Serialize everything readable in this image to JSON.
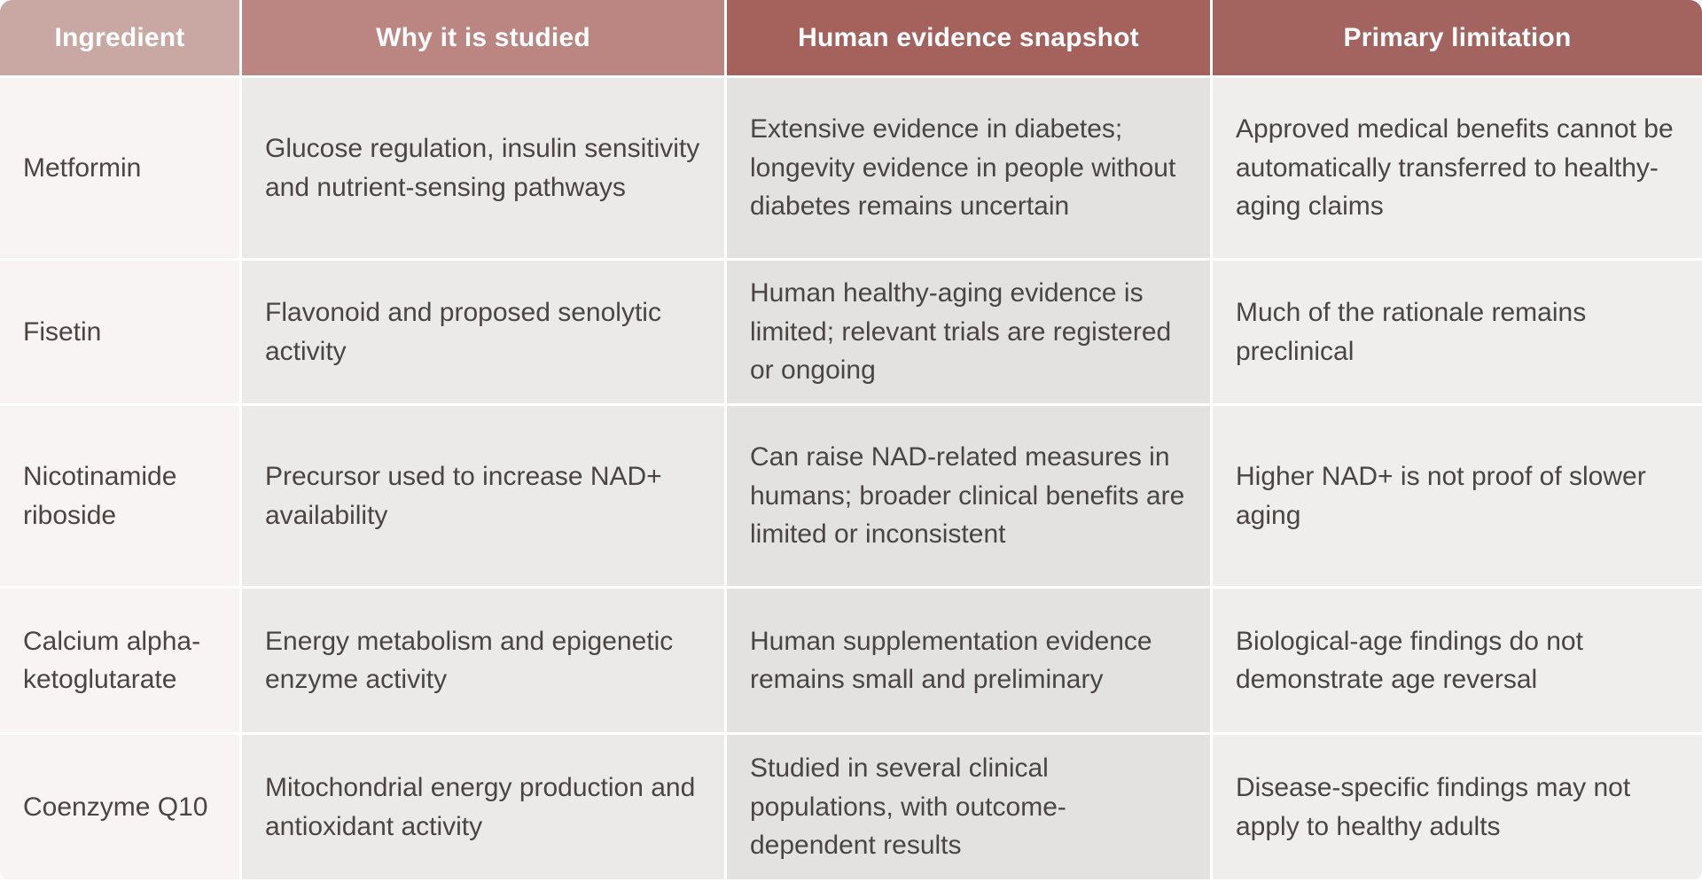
{
  "table": {
    "headers": [
      "Ingredient",
      "Why it is studied",
      "Human evidence snapshot",
      "Primary limitation"
    ],
    "rows": [
      {
        "ingredient": "Metformin",
        "why": "Glucose regulation, insulin sensitivity and nutrient-sensing pathways",
        "evidence": "Extensive evidence in diabetes; longevity evidence in people without diabetes remains uncertain",
        "limitation": "Approved medical benefits cannot be automatically transferred to healthy-aging claims"
      },
      {
        "ingredient": "Fisetin",
        "why": "Flavonoid and proposed senolytic activity",
        "evidence": "Human healthy-aging evidence is limited; relevant trials are registered or ongoing",
        "limitation": "Much of the rationale remains preclinical"
      },
      {
        "ingredient": "Nicotinamide riboside",
        "why": "Precursor used to increase NAD+ availability",
        "evidence": "Can raise NAD-related measures in humans; broader clinical benefits are limited or inconsistent",
        "limitation": "Higher NAD+ is not proof of slower aging"
      },
      {
        "ingredient": "Calcium alpha-ketoglutarate",
        "why": "Energy metabolism and epigenetic enzyme activity",
        "evidence": "Human supplementation evidence remains small and preliminary",
        "limitation": "Biological-age findings do not demonstrate age reversal"
      },
      {
        "ingredient": "Coenzyme Q10",
        "why": "Mitochondrial energy production and antioxidant activity",
        "evidence": "Studied in several clinical populations, with outcome-dependent results",
        "limitation": "Disease-specific findings may not apply to healthy adults"
      }
    ]
  }
}
